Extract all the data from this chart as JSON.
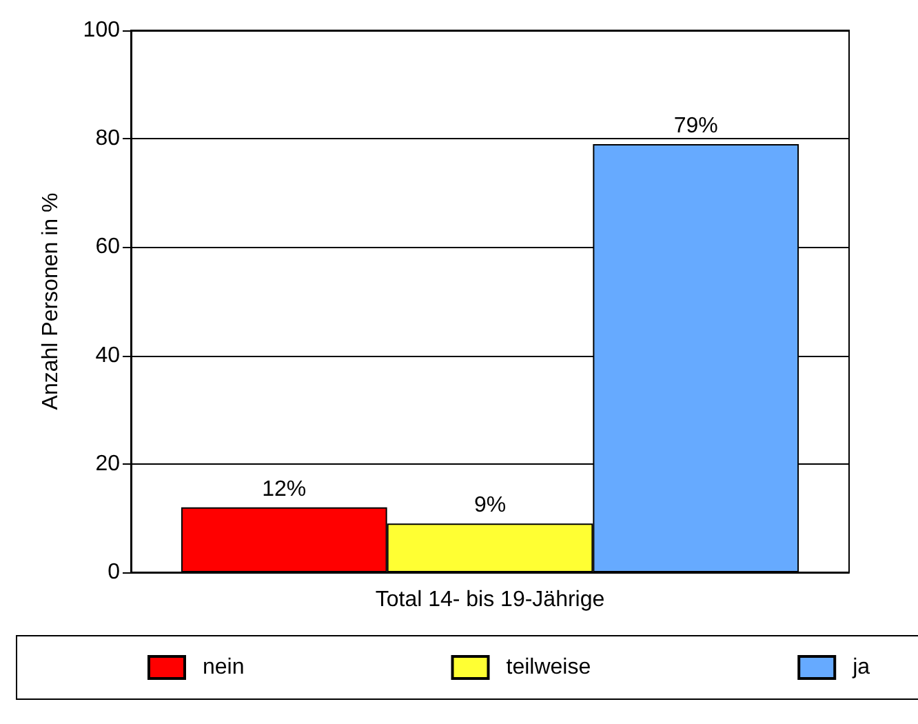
{
  "chart_data": {
    "type": "bar",
    "ylabel": "Anzahl Personen in %",
    "categories": [
      "Total 14- bis 19-Jährige"
    ],
    "series": [
      {
        "name": "nein",
        "color": "#ff0000",
        "values": [
          12
        ],
        "value_labels": [
          "12%"
        ]
      },
      {
        "name": "teilweise",
        "color": "#ffff33",
        "values": [
          9
        ],
        "value_labels": [
          "9%"
        ]
      },
      {
        "name": "ja",
        "color": "#66aaff",
        "values": [
          79
        ],
        "value_labels": [
          "79%"
        ]
      }
    ],
    "ylim": [
      0,
      100
    ],
    "yticks": [
      0,
      20,
      40,
      60,
      80,
      100
    ],
    "grid": "y",
    "legend": "bottom"
  }
}
